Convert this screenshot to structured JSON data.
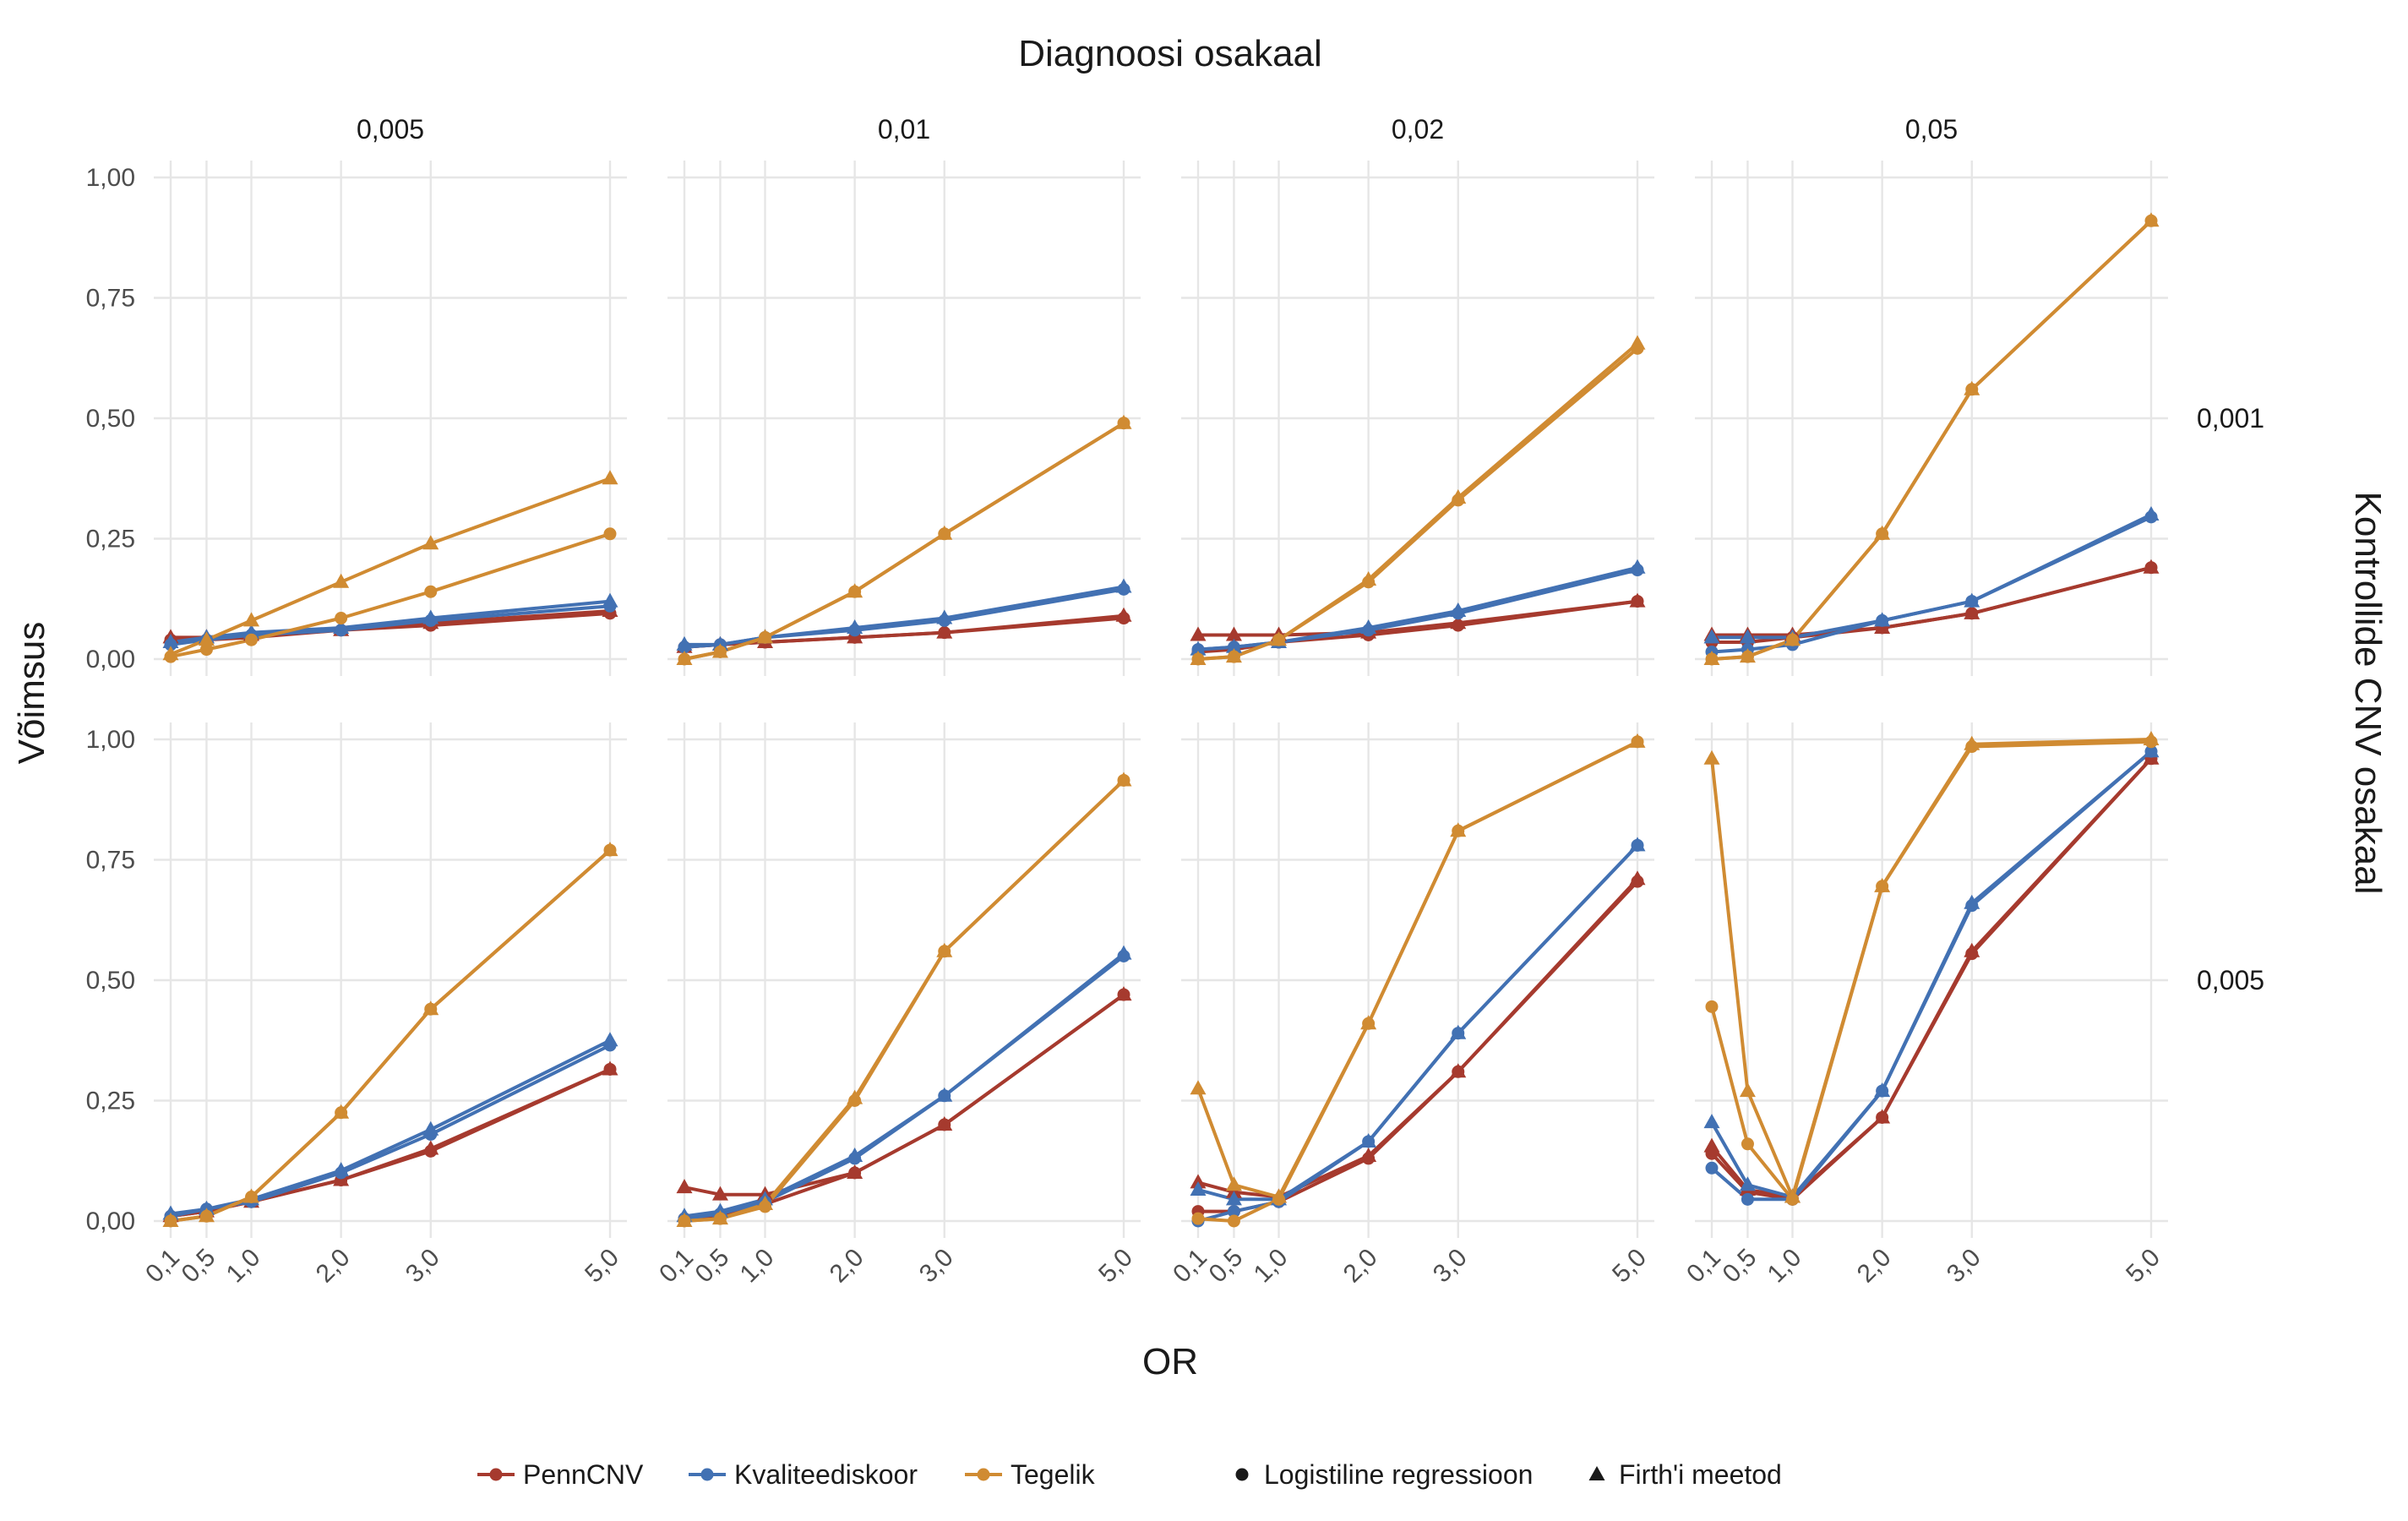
{
  "chart_data": {
    "type": "line",
    "top_title": "Diagnoosi osakaal",
    "right_title": "Kontrollide CNV osakaal",
    "xlabel": "OR",
    "ylabel": "Võimsus",
    "x": [
      0.1,
      0.5,
      1.0,
      2.0,
      3.0,
      5.0
    ],
    "x_tick_labels": [
      "0,1",
      "0,5",
      "1,0",
      "2,0",
      "3,0",
      "5,0"
    ],
    "ylim": [
      0,
      1
    ],
    "y_ticks": [
      0,
      0.25,
      0.5,
      0.75,
      1.0
    ],
    "y_tick_labels": [
      "0,00",
      "0,25",
      "0,50",
      "0,75",
      "1,00"
    ],
    "column_labels": [
      "0,005",
      "0,01",
      "0,02",
      "0,05"
    ],
    "row_labels": [
      "0,001",
      "0,005"
    ],
    "grid": true,
    "legend_placement": "bottom",
    "colors": {
      "PennCNV": "#a63a2e",
      "Kvaliteediskoor": "#4271b3",
      "Tegelik": "#d08b32"
    },
    "legend": {
      "colour_items": [
        "PennCNV",
        "Kvaliteediskoor",
        "Tegelik"
      ],
      "shape_items": [
        {
          "label": "Logistiline regressioon",
          "shape": "circle"
        },
        {
          "label": "Firth'i meetod",
          "shape": "triangle"
        }
      ]
    },
    "panels": [
      {
        "row": 0,
        "col": 0,
        "series": [
          {
            "method": "PennCNV",
            "test": "logistic",
            "values": [
              0.04,
              0.04,
              0.045,
              0.06,
              0.07,
              0.095
            ]
          },
          {
            "method": "PennCNV",
            "test": "firth",
            "values": [
              0.045,
              0.045,
              0.05,
              0.06,
              0.075,
              0.1
            ]
          },
          {
            "method": "Kvaliteediskoor",
            "test": "logistic",
            "values": [
              0.03,
              0.04,
              0.05,
              0.06,
              0.08,
              0.11
            ]
          },
          {
            "method": "Kvaliteediskoor",
            "test": "firth",
            "values": [
              0.035,
              0.045,
              0.055,
              0.065,
              0.085,
              0.12
            ]
          },
          {
            "method": "Tegelik",
            "test": "logistic",
            "values": [
              0.005,
              0.02,
              0.04,
              0.085,
              0.14,
              0.26
            ]
          },
          {
            "method": "Tegelik",
            "test": "firth",
            "values": [
              0.01,
              0.04,
              0.08,
              0.16,
              0.24,
              0.375
            ]
          }
        ]
      },
      {
        "row": 0,
        "col": 1,
        "series": [
          {
            "method": "PennCNV",
            "test": "logistic",
            "values": [
              0.025,
              0.03,
              0.035,
              0.045,
              0.055,
              0.085
            ]
          },
          {
            "method": "PennCNV",
            "test": "firth",
            "values": [
              0.025,
              0.03,
              0.035,
              0.045,
              0.055,
              0.09
            ]
          },
          {
            "method": "Kvaliteediskoor",
            "test": "logistic",
            "values": [
              0.025,
              0.03,
              0.045,
              0.06,
              0.08,
              0.145
            ]
          },
          {
            "method": "Kvaliteediskoor",
            "test": "firth",
            "values": [
              0.03,
              0.03,
              0.045,
              0.065,
              0.085,
              0.15
            ]
          },
          {
            "method": "Tegelik",
            "test": "logistic",
            "values": [
              0.0,
              0.015,
              0.045,
              0.14,
              0.26,
              0.49
            ]
          },
          {
            "method": "Tegelik",
            "test": "firth",
            "values": [
              0.0,
              0.015,
              0.045,
              0.14,
              0.26,
              0.49
            ]
          }
        ]
      },
      {
        "row": 0,
        "col": 2,
        "series": [
          {
            "method": "PennCNV",
            "test": "logistic",
            "values": [
              0.015,
              0.02,
              0.035,
              0.05,
              0.07,
              0.12
            ]
          },
          {
            "method": "PennCNV",
            "test": "firth",
            "values": [
              0.05,
              0.05,
              0.05,
              0.055,
              0.075,
              0.12
            ]
          },
          {
            "method": "Kvaliteediskoor",
            "test": "logistic",
            "values": [
              0.02,
              0.025,
              0.035,
              0.06,
              0.095,
              0.185
            ]
          },
          {
            "method": "Kvaliteediskoor",
            "test": "firth",
            "values": [
              0.02,
              0.025,
              0.035,
              0.065,
              0.1,
              0.19
            ]
          },
          {
            "method": "Tegelik",
            "test": "logistic",
            "values": [
              0.0,
              0.005,
              0.04,
              0.16,
              0.33,
              0.645
            ]
          },
          {
            "method": "Tegelik",
            "test": "firth",
            "values": [
              0.0,
              0.005,
              0.04,
              0.165,
              0.335,
              0.655
            ]
          }
        ]
      },
      {
        "row": 0,
        "col": 3,
        "series": [
          {
            "method": "PennCNV",
            "test": "logistic",
            "values": [
              0.035,
              0.035,
              0.045,
              0.065,
              0.095,
              0.19
            ]
          },
          {
            "method": "PennCNV",
            "test": "firth",
            "values": [
              0.05,
              0.05,
              0.05,
              0.065,
              0.095,
              0.19
            ]
          },
          {
            "method": "Kvaliteediskoor",
            "test": "logistic",
            "values": [
              0.015,
              0.02,
              0.03,
              0.08,
              0.12,
              0.295
            ]
          },
          {
            "method": "Kvaliteediskoor",
            "test": "firth",
            "values": [
              0.045,
              0.045,
              0.045,
              0.08,
              0.12,
              0.3
            ]
          },
          {
            "method": "Tegelik",
            "test": "logistic",
            "values": [
              0.0,
              0.005,
              0.04,
              0.26,
              0.56,
              0.91
            ]
          },
          {
            "method": "Tegelik",
            "test": "firth",
            "values": [
              0.0,
              0.005,
              0.04,
              0.26,
              0.56,
              0.91
            ]
          }
        ]
      },
      {
        "row": 1,
        "col": 0,
        "series": [
          {
            "method": "PennCNV",
            "test": "logistic",
            "values": [
              0.01,
              0.02,
              0.04,
              0.085,
              0.145,
              0.315
            ]
          },
          {
            "method": "PennCNV",
            "test": "firth",
            "values": [
              0.01,
              0.02,
              0.04,
              0.085,
              0.15,
              0.315
            ]
          },
          {
            "method": "Kvaliteediskoor",
            "test": "logistic",
            "values": [
              0.01,
              0.025,
              0.04,
              0.1,
              0.18,
              0.365
            ]
          },
          {
            "method": "Kvaliteediskoor",
            "test": "firth",
            "values": [
              0.015,
              0.025,
              0.045,
              0.105,
              0.19,
              0.375
            ]
          },
          {
            "method": "Tegelik",
            "test": "logistic",
            "values": [
              0.0,
              0.01,
              0.05,
              0.225,
              0.44,
              0.77
            ]
          },
          {
            "method": "Tegelik",
            "test": "firth",
            "values": [
              0.0,
              0.01,
              0.05,
              0.225,
              0.44,
              0.77
            ]
          }
        ]
      },
      {
        "row": 1,
        "col": 1,
        "series": [
          {
            "method": "PennCNV",
            "test": "logistic",
            "values": [
              0.005,
              0.01,
              0.035,
              0.1,
              0.2,
              0.47
            ]
          },
          {
            "method": "PennCNV",
            "test": "firth",
            "values": [
              0.07,
              0.055,
              0.055,
              0.1,
              0.2,
              0.47
            ]
          },
          {
            "method": "Kvaliteediskoor",
            "test": "logistic",
            "values": [
              0.005,
              0.015,
              0.04,
              0.13,
              0.26,
              0.55
            ]
          },
          {
            "method": "Kvaliteediskoor",
            "test": "firth",
            "values": [
              0.01,
              0.02,
              0.045,
              0.135,
              0.26,
              0.555
            ]
          },
          {
            "method": "Tegelik",
            "test": "logistic",
            "values": [
              0.0,
              0.005,
              0.03,
              0.25,
              0.56,
              0.915
            ]
          },
          {
            "method": "Tegelik",
            "test": "firth",
            "values": [
              0.0,
              0.005,
              0.035,
              0.255,
              0.56,
              0.915
            ]
          }
        ]
      },
      {
        "row": 1,
        "col": 2,
        "series": [
          {
            "method": "PennCNV",
            "test": "logistic",
            "values": [
              0.02,
              0.02,
              0.04,
              0.13,
              0.31,
              0.705
            ]
          },
          {
            "method": "PennCNV",
            "test": "firth",
            "values": [
              0.08,
              0.06,
              0.05,
              0.135,
              0.31,
              0.71
            ]
          },
          {
            "method": "Kvaliteediskoor",
            "test": "logistic",
            "values": [
              0.0,
              0.02,
              0.04,
              0.165,
              0.39,
              0.78
            ]
          },
          {
            "method": "Kvaliteediskoor",
            "test": "firth",
            "values": [
              0.065,
              0.045,
              0.045,
              0.165,
              0.39,
              0.78
            ]
          },
          {
            "method": "Tegelik",
            "test": "logistic",
            "values": [
              0.005,
              0.0,
              0.045,
              0.41,
              0.81,
              0.995
            ]
          },
          {
            "method": "Tegelik",
            "test": "firth",
            "values": [
              0.275,
              0.075,
              0.05,
              0.41,
              0.81,
              0.995
            ]
          }
        ]
      },
      {
        "row": 1,
        "col": 3,
        "series": [
          {
            "method": "PennCNV",
            "test": "logistic",
            "values": [
              0.14,
              0.06,
              0.045,
              0.215,
              0.555,
              0.96
            ]
          },
          {
            "method": "PennCNV",
            "test": "firth",
            "values": [
              0.155,
              0.065,
              0.05,
              0.215,
              0.56,
              0.96
            ]
          },
          {
            "method": "Kvaliteediskoor",
            "test": "logistic",
            "values": [
              0.11,
              0.045,
              0.045,
              0.27,
              0.655,
              0.975
            ]
          },
          {
            "method": "Kvaliteediskoor",
            "test": "firth",
            "values": [
              0.205,
              0.075,
              0.05,
              0.27,
              0.66,
              0.975
            ]
          },
          {
            "method": "Tegelik",
            "test": "logistic",
            "values": [
              0.445,
              0.16,
              0.045,
              0.695,
              0.985,
              0.995
            ]
          },
          {
            "method": "Tegelik",
            "test": "firth",
            "values": [
              0.96,
              0.27,
              0.05,
              0.695,
              0.99,
              1.0
            ]
          }
        ]
      }
    ]
  }
}
